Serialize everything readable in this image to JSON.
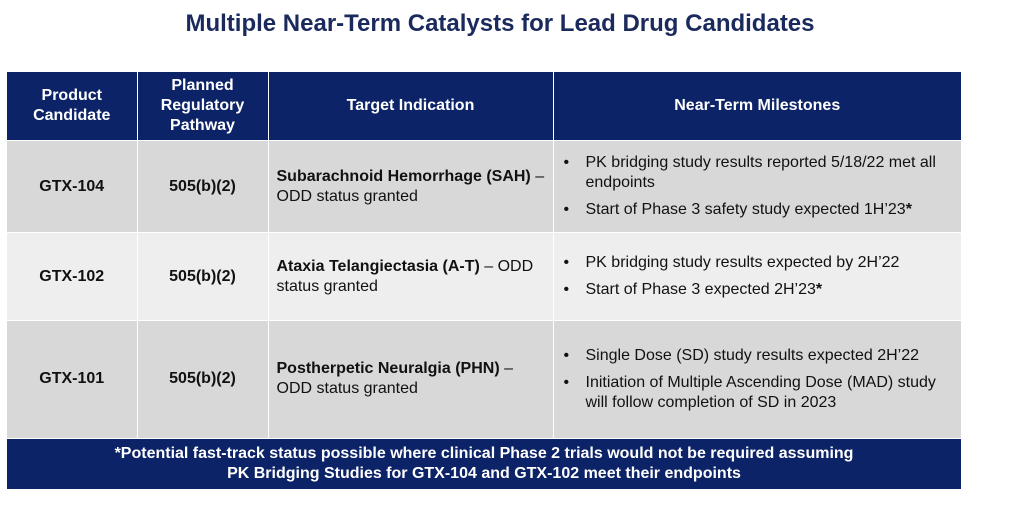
{
  "title": "Multiple Near-Term Catalysts for Lead Drug Candidates",
  "table": {
    "headers": [
      [
        "Product",
        "Candidate"
      ],
      [
        "Planned",
        "Regulatory",
        "Pathway"
      ],
      [
        "Target Indication"
      ],
      [
        "Near-Term Milestones"
      ]
    ],
    "rows": [
      {
        "candidate": "GTX-104",
        "pathway": "505(b)(2)",
        "indication_bold": "Subarachnoid Hemorrhage (SAH)",
        "indication_rest": " – ODD status granted",
        "milestones": [
          {
            "text": "PK bridging study results reported 5/18/22 met all endpoints",
            "mark": ""
          },
          {
            "text": "Start of Phase 3 safety study expected 1H’23",
            "mark": "*"
          }
        ]
      },
      {
        "candidate": "GTX-102",
        "pathway": "505(b)(2)",
        "indication_bold": "Ataxia Telangiectasia (A-T)",
        "indication_rest": " – ODD status granted",
        "milestones": [
          {
            "text": "PK bridging study results expected by 2H’22",
            "mark": ""
          },
          {
            "text": "Start of Phase 3 expected 2H’23",
            "mark": "*"
          }
        ]
      },
      {
        "candidate": "GTX-101",
        "pathway": "505(b)(2)",
        "indication_bold": "Postherpetic Neuralgia (PHN)",
        "indication_rest": " – ODD status granted",
        "milestones": [
          {
            "text": "Single Dose (SD) study results expected 2H’22",
            "mark": ""
          },
          {
            "text": "Initiation of Multiple Ascending Dose (MAD) study will follow completion of SD in 2023",
            "mark": ""
          }
        ]
      }
    ]
  },
  "footer": {
    "line1": "*Potential fast-track status possible where clinical Phase 2 trials would not be required assuming",
    "line2": "PK Bridging Studies for GTX-104 and GTX-102 meet their endpoints"
  },
  "colors": {
    "navy": "#0d2368",
    "title": "#1b2a5c",
    "row_dark": "#d8d8d8",
    "row_light": "#eeeeee"
  }
}
